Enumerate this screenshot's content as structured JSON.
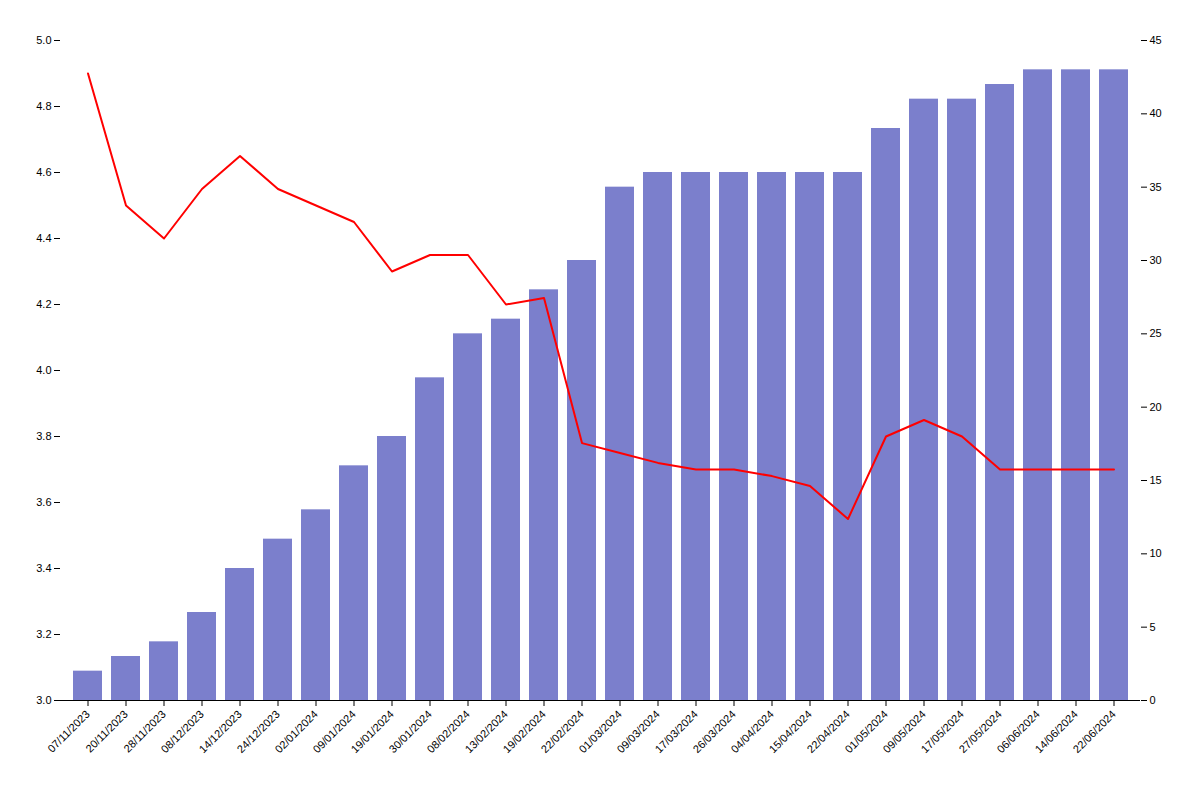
{
  "chart_data": {
    "type": "bar",
    "categories": [
      "07/11/2023",
      "20/11/2023",
      "28/11/2023",
      "08/12/2023",
      "14/12/2023",
      "24/12/2023",
      "02/01/2024",
      "09/01/2024",
      "19/01/2024",
      "30/01/2024",
      "08/02/2024",
      "13/02/2024",
      "19/02/2024",
      "22/02/2024",
      "01/03/2024",
      "09/03/2024",
      "17/03/2024",
      "26/03/2024",
      "04/04/2024",
      "15/04/2024",
      "22/04/2024",
      "01/05/2024",
      "09/05/2024",
      "17/05/2024",
      "27/05/2024",
      "06/06/2024",
      "14/06/2024",
      "22/06/2024"
    ],
    "series": [
      {
        "type": "bar",
        "axis": "y2",
        "color": "#7b7fcc",
        "values": [
          2,
          3,
          4,
          6,
          9,
          11,
          13,
          16,
          18,
          22,
          25,
          26,
          28,
          30,
          35,
          36,
          36,
          36,
          36,
          36,
          36,
          39,
          41,
          41,
          42,
          43,
          43,
          43
        ]
      },
      {
        "type": "line",
        "color": "#ff0000",
        "values": [
          4.9,
          4.5,
          4.4,
          4.55,
          4.65,
          4.55,
          4.5,
          4.45,
          4.3,
          4.35,
          4.35,
          4.2,
          4.22,
          3.78,
          3.75,
          3.72,
          3.7,
          3.7,
          3.68,
          3.65,
          3.55,
          3.8,
          3.85,
          3.8,
          3.7,
          3.7,
          3.7,
          3.7
        ]
      }
    ],
    "ylim": [
      3.0,
      5.0
    ],
    "yticks": [
      {
        "value": 3.0,
        "label": "3.0"
      },
      3.2,
      3.4,
      3.6,
      3.8,
      {
        "value": 4.0,
        "label": "4.0"
      },
      4.2,
      4.4,
      4.6,
      4.8,
      {
        "value": 5.0,
        "label": "5.0"
      }
    ],
    "y2lim": [
      0,
      45
    ],
    "y2ticks": [
      0,
      5,
      10,
      15,
      20,
      25,
      30,
      35,
      40,
      45
    ]
  }
}
